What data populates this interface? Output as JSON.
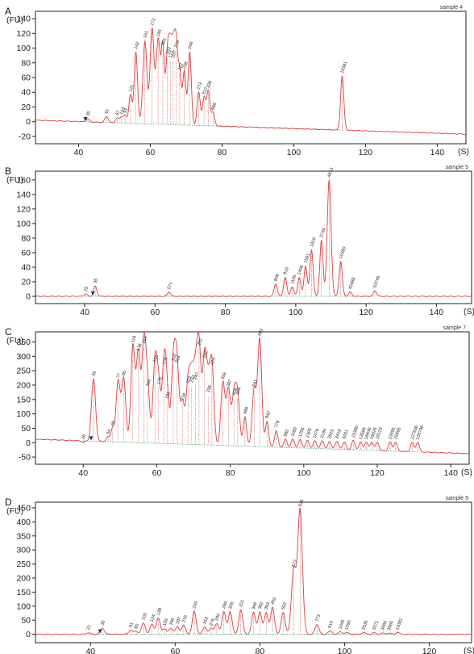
{
  "chart_data": [
    {
      "type": "line",
      "panel": "A",
      "sample": "sample 4",
      "ylabel": "(FU)",
      "xlabel": "(S)",
      "xlim": [
        28,
        148
      ],
      "ylim": [
        -30,
        150
      ],
      "xticks": [
        40,
        60,
        80,
        100,
        120,
        140
      ],
      "yticks": [
        -20,
        0,
        20,
        40,
        60,
        80,
        100,
        120,
        140
      ],
      "baseline": {
        "start": 2,
        "end": -17
      },
      "peaks": [
        {
          "x": 42.6,
          "y": 4,
          "label": "35",
          "kind": "lower"
        },
        {
          "x": 47.8,
          "y": 7,
          "label": "51"
        },
        {
          "x": 50.8,
          "y": 5,
          "label": "67"
        },
        {
          "x": 52.0,
          "y": 6,
          "label": "103"
        },
        {
          "x": 53.0,
          "y": 8,
          "label": "92"
        },
        {
          "x": 54.5,
          "y": 37,
          "label": "121"
        },
        {
          "x": 56.0,
          "y": 95,
          "label": "142"
        },
        {
          "x": 58.5,
          "y": 110,
          "label": "161"
        },
        {
          "x": 60.5,
          "y": 127,
          "label": "172"
        },
        {
          "x": 62.2,
          "y": 112,
          "label": "184"
        },
        {
          "x": 63.5,
          "y": 100,
          "label": "201"
        },
        {
          "x": 64.8,
          "y": 88,
          "label": "192"
        },
        {
          "x": 65.6,
          "y": 83,
          "label": "173"
        },
        {
          "x": 66.4,
          "y": 83,
          "label": "207"
        },
        {
          "x": 67.2,
          "y": 97,
          "label": "216"
        },
        {
          "x": 68.2,
          "y": 66,
          "label": "222"
        },
        {
          "x": 69.5,
          "y": 68,
          "label": "208"
        },
        {
          "x": 71.0,
          "y": 95,
          "label": "248"
        },
        {
          "x": 73.5,
          "y": 40,
          "label": "273"
        },
        {
          "x": 75.0,
          "y": 33,
          "label": "312"
        },
        {
          "x": 76.2,
          "y": 42,
          "label": "336"
        },
        {
          "x": 77.5,
          "y": 12,
          "label": "868"
        },
        {
          "x": 113.5,
          "y": 62,
          "label": "10381",
          "kind": "upper"
        }
      ]
    },
    {
      "type": "line",
      "panel": "B",
      "sample": "sample 5",
      "ylabel": "(FU)",
      "xlabel": "(S)",
      "xlim": [
        26,
        150
      ],
      "ylim": [
        -10,
        172
      ],
      "xticks": [
        40,
        60,
        80,
        100,
        120,
        140
      ],
      "yticks": [
        0,
        20,
        40,
        60,
        80,
        100,
        120,
        140,
        160
      ],
      "baseline": {
        "start": 0,
        "end": 0
      },
      "peaks": [
        {
          "x": 40.3,
          "y": 3,
          "label": "25"
        },
        {
          "x": 43.0,
          "y": 14,
          "label": "35",
          "kind": "lower"
        },
        {
          "x": 64.0,
          "y": 6,
          "label": "571"
        },
        {
          "x": 94.3,
          "y": 17,
          "label": "808"
        },
        {
          "x": 97.0,
          "y": 26,
          "label": "919"
        },
        {
          "x": 99.0,
          "y": 13,
          "label": "1126"
        },
        {
          "x": 101.0,
          "y": 26,
          "label": "1406"
        },
        {
          "x": 102.8,
          "y": 42,
          "label": "1591"
        },
        {
          "x": 104.5,
          "y": 64,
          "label": "1819"
        },
        {
          "x": 107.3,
          "y": 77,
          "label": "2734"
        },
        {
          "x": 109.5,
          "y": 160,
          "label": "4673"
        },
        {
          "x": 112.8,
          "y": 48,
          "label": "10380",
          "kind": "upper"
        },
        {
          "x": 115.5,
          "y": 6,
          "label": "42488"
        },
        {
          "x": 122.5,
          "y": 8,
          "label": "53746"
        }
      ]
    },
    {
      "type": "line",
      "panel": "C",
      "sample": "sample 7",
      "ylabel": "(FU)",
      "xlabel": "(S)",
      "xlim": [
        27,
        145
      ],
      "ylim": [
        -75,
        385
      ],
      "xticks": [
        40,
        60,
        80,
        100,
        120,
        140
      ],
      "yticks": [
        -50,
        0,
        50,
        100,
        150,
        200,
        250,
        300,
        350
      ],
      "baseline": {
        "start": 12,
        "end": -38
      },
      "peaks": [
        {
          "x": 40.0,
          "y": 2,
          "label": "26"
        },
        {
          "x": 42.8,
          "y": 222,
          "label": "35",
          "kind": "lower"
        },
        {
          "x": 46.8,
          "y": 20,
          "label": "54"
        },
        {
          "x": 48.0,
          "y": 50,
          "label": "66"
        },
        {
          "x": 49.5,
          "y": 215,
          "label": "77"
        },
        {
          "x": 51.0,
          "y": 223,
          "label": "85"
        },
        {
          "x": 53.5,
          "y": 338,
          "label": "118"
        },
        {
          "x": 55.0,
          "y": 310,
          "label": "136"
        },
        {
          "x": 56.5,
          "y": 335,
          "label": "144"
        },
        {
          "x": 57.5,
          "y": 186,
          "label": "164"
        },
        {
          "x": 59.5,
          "y": 270,
          "label": "155"
        },
        {
          "x": 60.5,
          "y": 193,
          "label": "176"
        },
        {
          "x": 62.0,
          "y": 262,
          "label": "176"
        },
        {
          "x": 62.8,
          "y": 143,
          "label": "182"
        },
        {
          "x": 64.5,
          "y": 275,
          "label": "202"
        },
        {
          "x": 65.5,
          "y": 268,
          "label": "214"
        },
        {
          "x": 67.0,
          "y": 138,
          "label": "234"
        },
        {
          "x": 68.5,
          "y": 197,
          "label": "222"
        },
        {
          "x": 69.5,
          "y": 200,
          "label": "233"
        },
        {
          "x": 70.5,
          "y": 210,
          "label": "247"
        },
        {
          "x": 71.5,
          "y": 328,
          "label": "262"
        },
        {
          "x": 73.0,
          "y": 285,
          "label": "282"
        },
        {
          "x": 74.0,
          "y": 165,
          "label": "296"
        },
        {
          "x": 75.0,
          "y": 262,
          "label": "316"
        },
        {
          "x": 78.0,
          "y": 210,
          "label": "356"
        },
        {
          "x": 79.5,
          "y": 185,
          "label": "387"
        },
        {
          "x": 81.0,
          "y": 155,
          "label": "409"
        },
        {
          "x": 82.0,
          "y": 158,
          "label": "404"
        },
        {
          "x": 84.0,
          "y": 90,
          "label": "486"
        },
        {
          "x": 86.5,
          "y": 185,
          "label": "541"
        },
        {
          "x": 88.0,
          "y": 362,
          "label": "682"
        },
        {
          "x": 90.0,
          "y": 75,
          "label": "842"
        },
        {
          "x": 92.5,
          "y": 42,
          "label": "778"
        },
        {
          "x": 95.0,
          "y": 12,
          "label": "982"
        },
        {
          "x": 97.0,
          "y": 12,
          "label": "1082"
        },
        {
          "x": 99.0,
          "y": 10,
          "label": "1256"
        },
        {
          "x": 101.0,
          "y": 8,
          "label": "1305"
        },
        {
          "x": 103.0,
          "y": 6,
          "label": "1476"
        },
        {
          "x": 105.0,
          "y": 6,
          "label": "2196"
        },
        {
          "x": 107.0,
          "y": 4,
          "label": "2815"
        },
        {
          "x": 109.0,
          "y": 4,
          "label": "3418"
        },
        {
          "x": 111.0,
          "y": 3,
          "label": "5051"
        },
        {
          "x": 113.5,
          "y": 8,
          "label": "10380",
          "kind": "upper"
        },
        {
          "x": 115.5,
          "y": 2,
          "label": "13586"
        },
        {
          "x": 117.0,
          "y": 2,
          "label": "16436"
        },
        {
          "x": 118.5,
          "y": 2,
          "label": "18026"
        },
        {
          "x": 120.0,
          "y": 2,
          "label": "19123"
        },
        {
          "x": 123.5,
          "y": 2,
          "label": "23495"
        },
        {
          "x": 125.0,
          "y": 2,
          "label": "25695"
        },
        {
          "x": 129.5,
          "y": 1,
          "label": "127536"
        },
        {
          "x": 131.0,
          "y": 1,
          "label": "133796"
        }
      ]
    },
    {
      "type": "line",
      "panel": "D",
      "sample": "sample 9",
      "ylabel": "(FU)",
      "xlabel": "(S)",
      "xlim": [
        27,
        130
      ],
      "ylim": [
        -30,
        470
      ],
      "xticks": [
        40,
        60,
        80,
        100,
        120
      ],
      "yticks": [
        0,
        50,
        100,
        150,
        200,
        250,
        300,
        350,
        400,
        450
      ],
      "baseline": {
        "start": 0,
        "end": 0
      },
      "peaks": [
        {
          "x": 39.5,
          "y": 5,
          "label": "22"
        },
        {
          "x": 42.8,
          "y": 22,
          "label": "35",
          "kind": "lower"
        },
        {
          "x": 49.5,
          "y": 15,
          "label": "61"
        },
        {
          "x": 50.8,
          "y": 10,
          "label": "80"
        },
        {
          "x": 52.5,
          "y": 40,
          "label": "103"
        },
        {
          "x": 54.5,
          "y": 35,
          "label": "124"
        },
        {
          "x": 56.0,
          "y": 58,
          "label": "138"
        },
        {
          "x": 57.5,
          "y": 20,
          "label": "159"
        },
        {
          "x": 59.0,
          "y": 22,
          "label": "168"
        },
        {
          "x": 60.5,
          "y": 26,
          "label": "182"
        },
        {
          "x": 62.0,
          "y": 32,
          "label": "216"
        },
        {
          "x": 64.5,
          "y": 82,
          "label": "234"
        },
        {
          "x": 67.0,
          "y": 26,
          "label": "253"
        },
        {
          "x": 68.5,
          "y": 20,
          "label": "278"
        },
        {
          "x": 69.8,
          "y": 38,
          "label": "290"
        },
        {
          "x": 71.5,
          "y": 82,
          "label": "266"
        },
        {
          "x": 73.0,
          "y": 80,
          "label": "305"
        },
        {
          "x": 75.5,
          "y": 88,
          "label": "321"
        },
        {
          "x": 78.5,
          "y": 78,
          "label": "348"
        },
        {
          "x": 80.0,
          "y": 80,
          "label": "382"
        },
        {
          "x": 81.5,
          "y": 78,
          "label": "393"
        },
        {
          "x": 83.0,
          "y": 96,
          "label": "450"
        },
        {
          "x": 85.5,
          "y": 78,
          "label": "502"
        },
        {
          "x": 88.0,
          "y": 230,
          "label": "572"
        },
        {
          "x": 89.5,
          "y": 445,
          "label": "616"
        },
        {
          "x": 93.5,
          "y": 35,
          "label": "773"
        },
        {
          "x": 96.5,
          "y": 12,
          "label": "913"
        },
        {
          "x": 99.0,
          "y": 8,
          "label": "1045"
        },
        {
          "x": 100.5,
          "y": 6,
          "label": "1290"
        },
        {
          "x": 104.5,
          "y": 6,
          "label": "2535"
        },
        {
          "x": 107.0,
          "y": 5,
          "label": "3371"
        },
        {
          "x": 109.0,
          "y": 4,
          "label": "3980"
        },
        {
          "x": 110.5,
          "y": 4,
          "label": "3965"
        },
        {
          "x": 112.5,
          "y": 6,
          "label": "10381",
          "kind": "upper"
        }
      ]
    }
  ],
  "colors": {
    "trace": "#e03c3c",
    "dropline": "#d06060",
    "baseline_dots": "#3fa86a",
    "lower_marker": "#2aa02a",
    "upper_marker": "#9b30d9",
    "arrow": "#1e2a80"
  }
}
